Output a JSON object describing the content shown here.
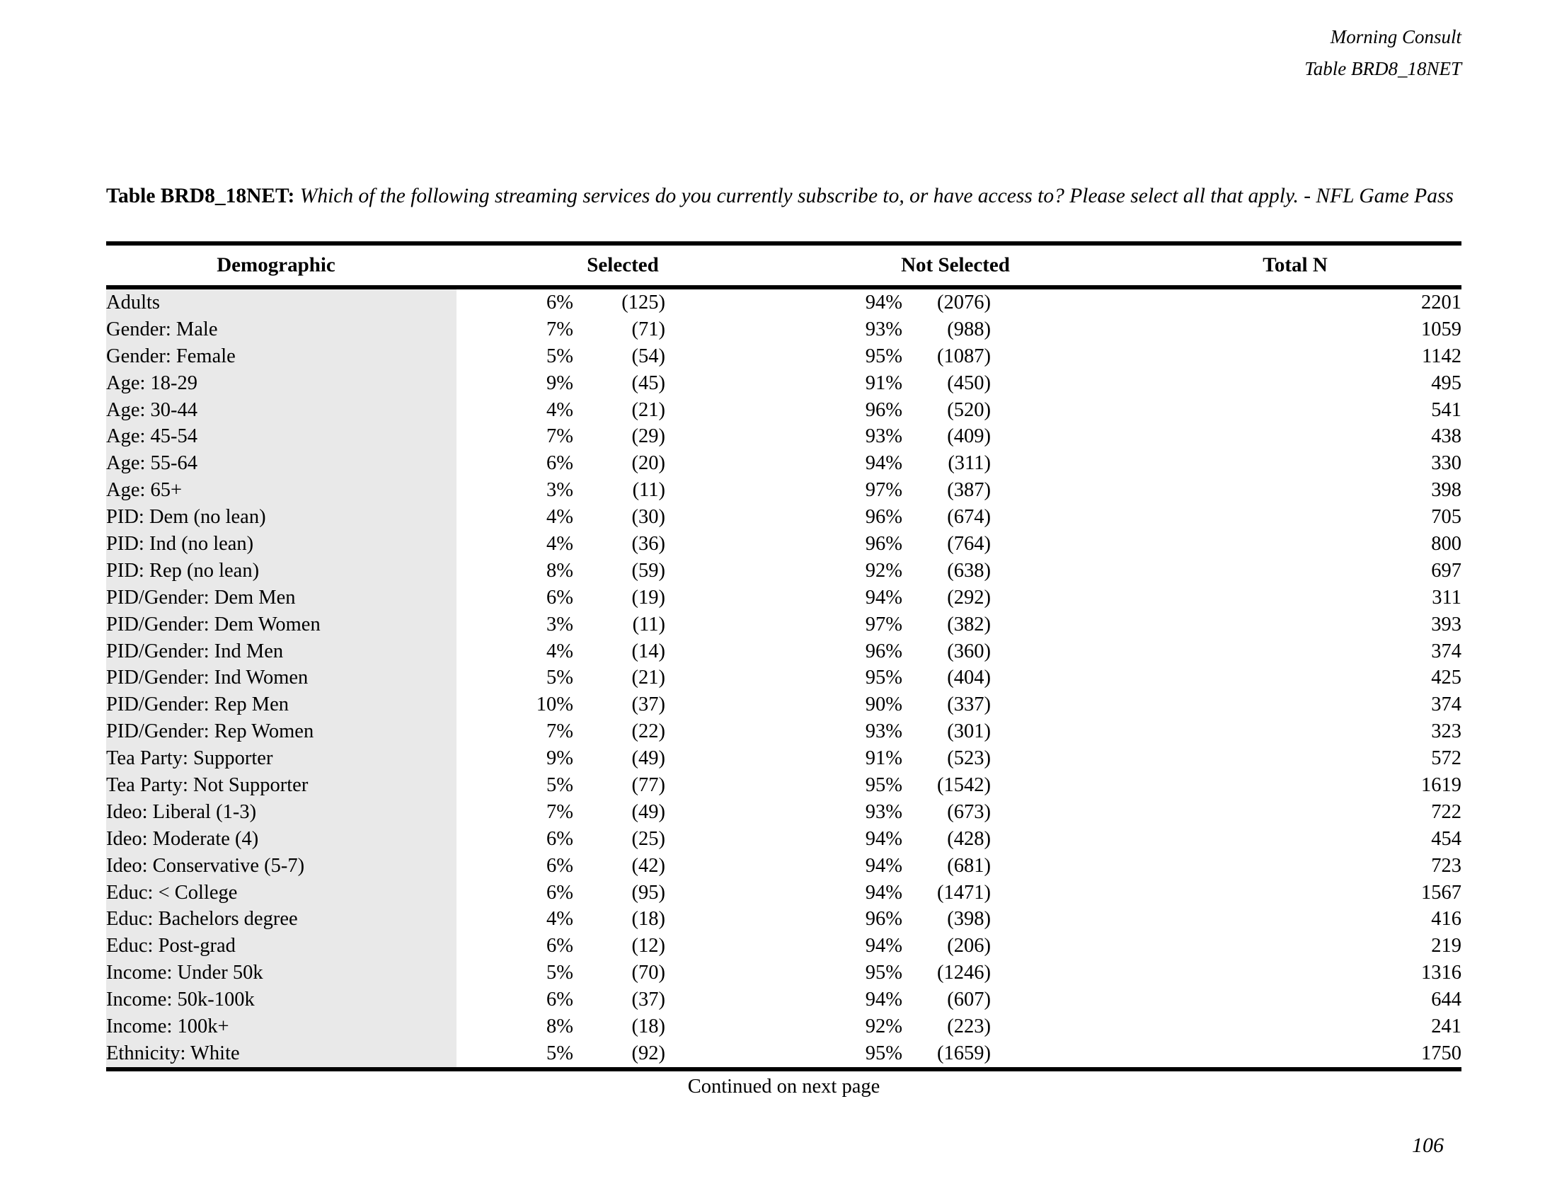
{
  "page_header": {
    "brand": "Morning Consult",
    "table_ref": "Table BRD8_18NET"
  },
  "title": {
    "prefix": "Table BRD8_18NET:",
    "question": "Which of the following streaming services do you currently subscribe to, or have access to? Please select all that apply. - NFL Game Pass"
  },
  "table": {
    "columns": [
      "Demographic",
      "Selected",
      "Not Selected",
      "Total N"
    ],
    "rows": [
      {
        "demographic": "Adults",
        "selected_pct": "6%",
        "selected_n": "(125)",
        "not_selected_pct": "94%",
        "not_selected_n": "(2076)",
        "total_n": "2201"
      },
      {
        "demographic": "Gender: Male",
        "selected_pct": "7%",
        "selected_n": "(71)",
        "not_selected_pct": "93%",
        "not_selected_n": "(988)",
        "total_n": "1059"
      },
      {
        "demographic": "Gender: Female",
        "selected_pct": "5%",
        "selected_n": "(54)",
        "not_selected_pct": "95%",
        "not_selected_n": "(1087)",
        "total_n": "1142"
      },
      {
        "demographic": "Age: 18-29",
        "selected_pct": "9%",
        "selected_n": "(45)",
        "not_selected_pct": "91%",
        "not_selected_n": "(450)",
        "total_n": "495"
      },
      {
        "demographic": "Age: 30-44",
        "selected_pct": "4%",
        "selected_n": "(21)",
        "not_selected_pct": "96%",
        "not_selected_n": "(520)",
        "total_n": "541"
      },
      {
        "demographic": "Age: 45-54",
        "selected_pct": "7%",
        "selected_n": "(29)",
        "not_selected_pct": "93%",
        "not_selected_n": "(409)",
        "total_n": "438"
      },
      {
        "demographic": "Age: 55-64",
        "selected_pct": "6%",
        "selected_n": "(20)",
        "not_selected_pct": "94%",
        "not_selected_n": "(311)",
        "total_n": "330"
      },
      {
        "demographic": "Age: 65+",
        "selected_pct": "3%",
        "selected_n": "(11)",
        "not_selected_pct": "97%",
        "not_selected_n": "(387)",
        "total_n": "398"
      },
      {
        "demographic": "PID: Dem (no lean)",
        "selected_pct": "4%",
        "selected_n": "(30)",
        "not_selected_pct": "96%",
        "not_selected_n": "(674)",
        "total_n": "705"
      },
      {
        "demographic": "PID: Ind (no lean)",
        "selected_pct": "4%",
        "selected_n": "(36)",
        "not_selected_pct": "96%",
        "not_selected_n": "(764)",
        "total_n": "800"
      },
      {
        "demographic": "PID: Rep (no lean)",
        "selected_pct": "8%",
        "selected_n": "(59)",
        "not_selected_pct": "92%",
        "not_selected_n": "(638)",
        "total_n": "697"
      },
      {
        "demographic": "PID/Gender: Dem Men",
        "selected_pct": "6%",
        "selected_n": "(19)",
        "not_selected_pct": "94%",
        "not_selected_n": "(292)",
        "total_n": "311"
      },
      {
        "demographic": "PID/Gender: Dem Women",
        "selected_pct": "3%",
        "selected_n": "(11)",
        "not_selected_pct": "97%",
        "not_selected_n": "(382)",
        "total_n": "393"
      },
      {
        "demographic": "PID/Gender: Ind Men",
        "selected_pct": "4%",
        "selected_n": "(14)",
        "not_selected_pct": "96%",
        "not_selected_n": "(360)",
        "total_n": "374"
      },
      {
        "demographic": "PID/Gender: Ind Women",
        "selected_pct": "5%",
        "selected_n": "(21)",
        "not_selected_pct": "95%",
        "not_selected_n": "(404)",
        "total_n": "425"
      },
      {
        "demographic": "PID/Gender: Rep Men",
        "selected_pct": "10%",
        "selected_n": "(37)",
        "not_selected_pct": "90%",
        "not_selected_n": "(337)",
        "total_n": "374"
      },
      {
        "demographic": "PID/Gender: Rep Women",
        "selected_pct": "7%",
        "selected_n": "(22)",
        "not_selected_pct": "93%",
        "not_selected_n": "(301)",
        "total_n": "323"
      },
      {
        "demographic": "Tea Party: Supporter",
        "selected_pct": "9%",
        "selected_n": "(49)",
        "not_selected_pct": "91%",
        "not_selected_n": "(523)",
        "total_n": "572"
      },
      {
        "demographic": "Tea Party: Not Supporter",
        "selected_pct": "5%",
        "selected_n": "(77)",
        "not_selected_pct": "95%",
        "not_selected_n": "(1542)",
        "total_n": "1619"
      },
      {
        "demographic": "Ideo: Liberal (1-3)",
        "selected_pct": "7%",
        "selected_n": "(49)",
        "not_selected_pct": "93%",
        "not_selected_n": "(673)",
        "total_n": "722"
      },
      {
        "demographic": "Ideo: Moderate (4)",
        "selected_pct": "6%",
        "selected_n": "(25)",
        "not_selected_pct": "94%",
        "not_selected_n": "(428)",
        "total_n": "454"
      },
      {
        "demographic": "Ideo: Conservative (5-7)",
        "selected_pct": "6%",
        "selected_n": "(42)",
        "not_selected_pct": "94%",
        "not_selected_n": "(681)",
        "total_n": "723"
      },
      {
        "demographic": "Educ: < College",
        "selected_pct": "6%",
        "selected_n": "(95)",
        "not_selected_pct": "94%",
        "not_selected_n": "(1471)",
        "total_n": "1567"
      },
      {
        "demographic": "Educ: Bachelors degree",
        "selected_pct": "4%",
        "selected_n": "(18)",
        "not_selected_pct": "96%",
        "not_selected_n": "(398)",
        "total_n": "416"
      },
      {
        "demographic": "Educ: Post-grad",
        "selected_pct": "6%",
        "selected_n": "(12)",
        "not_selected_pct": "94%",
        "not_selected_n": "(206)",
        "total_n": "219"
      },
      {
        "demographic": "Income: Under 50k",
        "selected_pct": "5%",
        "selected_n": "(70)",
        "not_selected_pct": "95%",
        "not_selected_n": "(1246)",
        "total_n": "1316"
      },
      {
        "demographic": "Income: 50k-100k",
        "selected_pct": "6%",
        "selected_n": "(37)",
        "not_selected_pct": "94%",
        "not_selected_n": "(607)",
        "total_n": "644"
      },
      {
        "demographic": "Income: 100k+",
        "selected_pct": "8%",
        "selected_n": "(18)",
        "not_selected_pct": "92%",
        "not_selected_n": "(223)",
        "total_n": "241"
      },
      {
        "demographic": "Ethnicity: White",
        "selected_pct": "5%",
        "selected_n": "(92)",
        "not_selected_pct": "95%",
        "not_selected_n": "(1659)",
        "total_n": "1750"
      }
    ]
  },
  "footer": {
    "continued": "Continued on next page",
    "page_number": "106"
  },
  "colors": {
    "row_shade": "#e9e9e9",
    "text": "#000000"
  }
}
